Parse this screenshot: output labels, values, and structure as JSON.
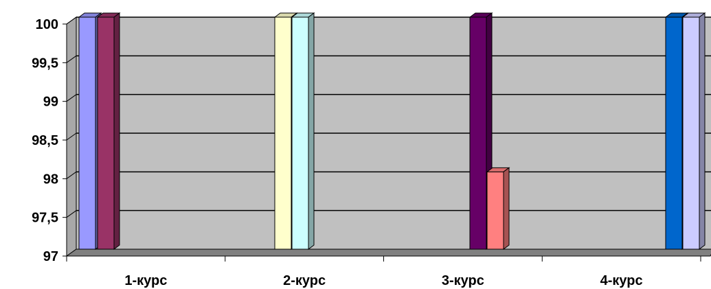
{
  "chart_data": {
    "type": "bar",
    "style": "3d-clustered-column",
    "categories": [
      "1-курс",
      "2-курс",
      "3-курс",
      "4-курс"
    ],
    "ylim": [
      97,
      100
    ],
    "yticks": [
      "97",
      "97,5",
      "98",
      "98,5",
      "99",
      "99,5",
      "100"
    ],
    "grid": true,
    "wall_color": "#c0c0c0",
    "floor_color": "#808080",
    "bars": [
      [
        {
          "value": 100,
          "color": "#9999ff"
        },
        {
          "value": 100,
          "color": "#993366"
        }
      ],
      [
        {
          "value": 100,
          "color": "#ffffcc"
        },
        {
          "value": 100,
          "color": "#ccffff"
        }
      ],
      [
        {
          "value": 100,
          "color": "#660066"
        },
        {
          "value": 98,
          "color": "#ff8080"
        }
      ],
      [
        {
          "value": 100,
          "color": "#0066cc"
        },
        {
          "value": 100,
          "color": "#ccccff"
        }
      ]
    ]
  }
}
